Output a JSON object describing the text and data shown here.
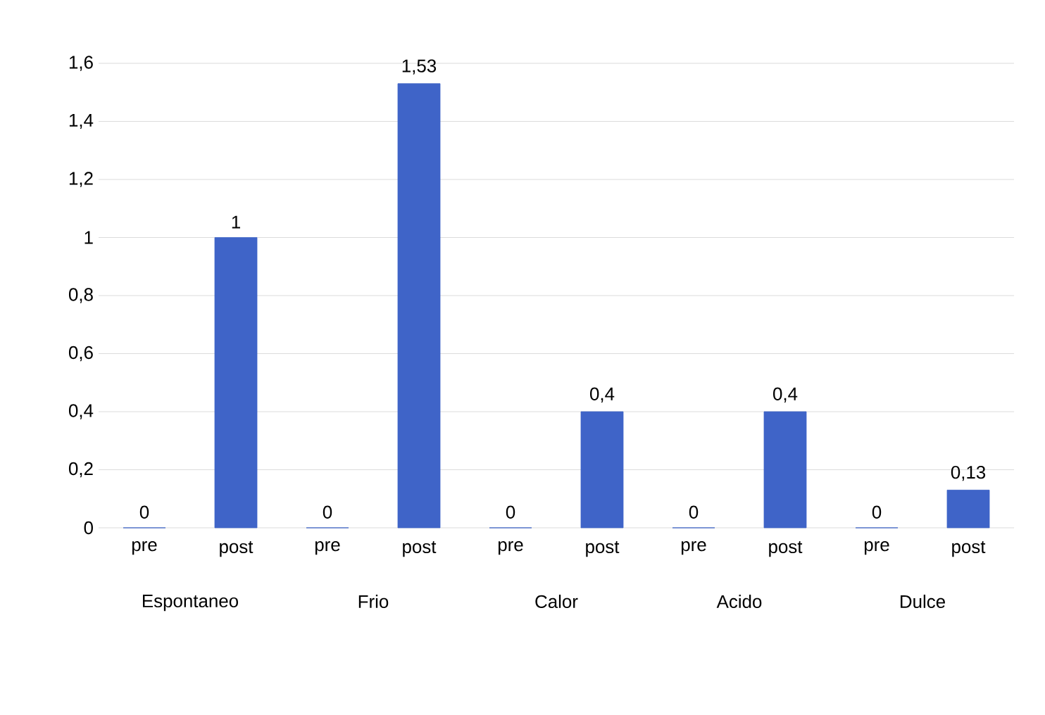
{
  "chart_data": {
    "type": "bar",
    "categories": [
      "pre",
      "post",
      "pre",
      "post",
      "pre",
      "post",
      "pre",
      "post",
      "pre",
      "post"
    ],
    "values": [
      0,
      1,
      0,
      1.53,
      0,
      0.4,
      0,
      0.4,
      0,
      0.13
    ],
    "value_labels": [
      "0",
      "1",
      "0",
      "1,53",
      "0",
      "0,4",
      "0",
      "0,4",
      "0",
      "0,13"
    ],
    "color": "#3f64c8",
    "ylim": [
      0,
      1.6
    ],
    "yticks": [
      0,
      {
        "value": 0.2,
        "label": "0,2"
      },
      {
        "value": 0.4,
        "label": "0,4"
      },
      {
        "value": 0.6,
        "label": "0,6"
      },
      {
        "value": 0.8,
        "label": "0,8"
      },
      1,
      {
        "value": 1.2,
        "label": "1,2"
      },
      {
        "value": 1.4,
        "label": "1,4"
      },
      {
        "value": 1.6,
        "label": "1,6"
      }
    ],
    "grid": "y",
    "annotations": [
      "Espontaneo",
      "Frio",
      "Calor",
      "Acido",
      "Dulce"
    ]
  }
}
